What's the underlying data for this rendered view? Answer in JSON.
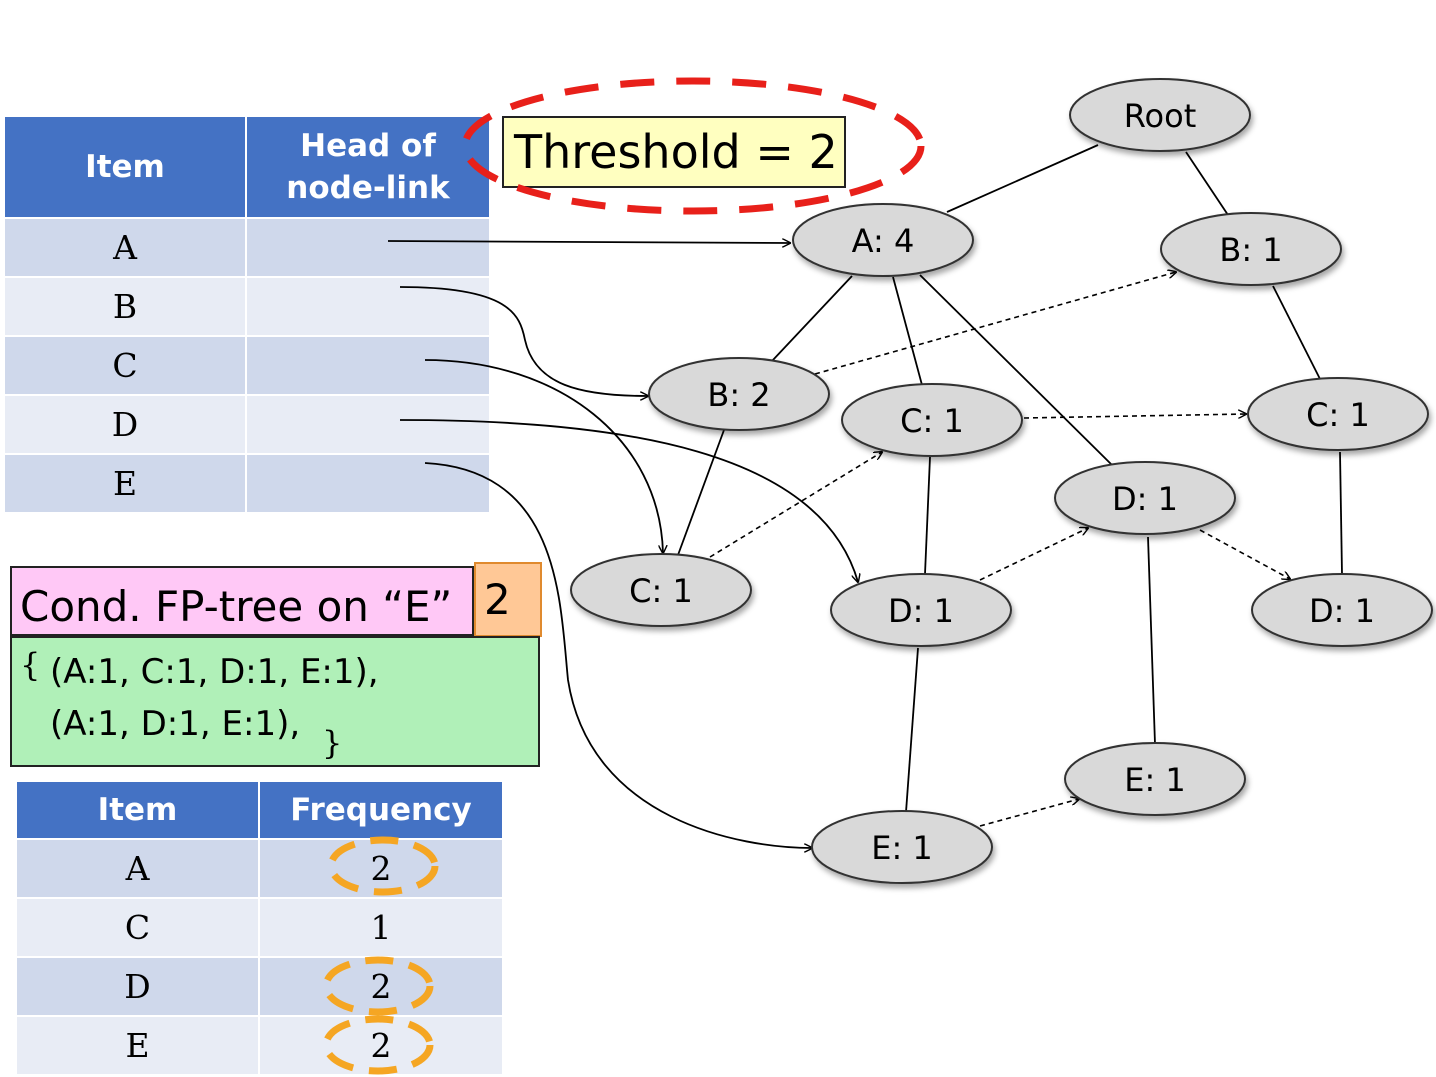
{
  "header_table": {
    "col_item": "Item",
    "col_head_line1": "Head of",
    "col_head_line2": "node-link",
    "items": [
      "A",
      "B",
      "C",
      "D",
      "E"
    ]
  },
  "threshold_label": "Threshold = 2",
  "conditional": {
    "title": "Cond. FP-tree on “E”",
    "count": "2",
    "open_brace": "{",
    "line1": "(A:1, C:1, D:1, E:1),",
    "line2": "(A:1, D:1, E:1),",
    "close_brace": "}"
  },
  "freq_table": {
    "col_item": "Item",
    "col_freq": "Frequency",
    "rows": [
      {
        "item": "A",
        "freq": "2"
      },
      {
        "item": "C",
        "freq": "1"
      },
      {
        "item": "D",
        "freq": "2"
      },
      {
        "item": "E",
        "freq": "2"
      }
    ]
  },
  "tree": {
    "nodes": [
      {
        "id": "root",
        "label": "Root"
      },
      {
        "id": "a4",
        "label": "A: 4"
      },
      {
        "id": "b1",
        "label": "B: 1"
      },
      {
        "id": "b2",
        "label": "B: 2"
      },
      {
        "id": "c1m",
        "label": "C: 1"
      },
      {
        "id": "c1r",
        "label": "C: 1"
      },
      {
        "id": "d1r",
        "label": "D: 1"
      },
      {
        "id": "c1l",
        "label": "C: 1"
      },
      {
        "id": "d1m",
        "label": "D: 1"
      },
      {
        "id": "d1rr",
        "label": "D: 1"
      },
      {
        "id": "e1r",
        "label": "E: 1"
      },
      {
        "id": "e1m",
        "label": "E: 1"
      }
    ]
  },
  "colors": {
    "header_blue": "#4472C4",
    "threshold_dash": "#e8201a",
    "freq_highlight": "#f5a623",
    "node_fill": "#d9d9d9"
  }
}
